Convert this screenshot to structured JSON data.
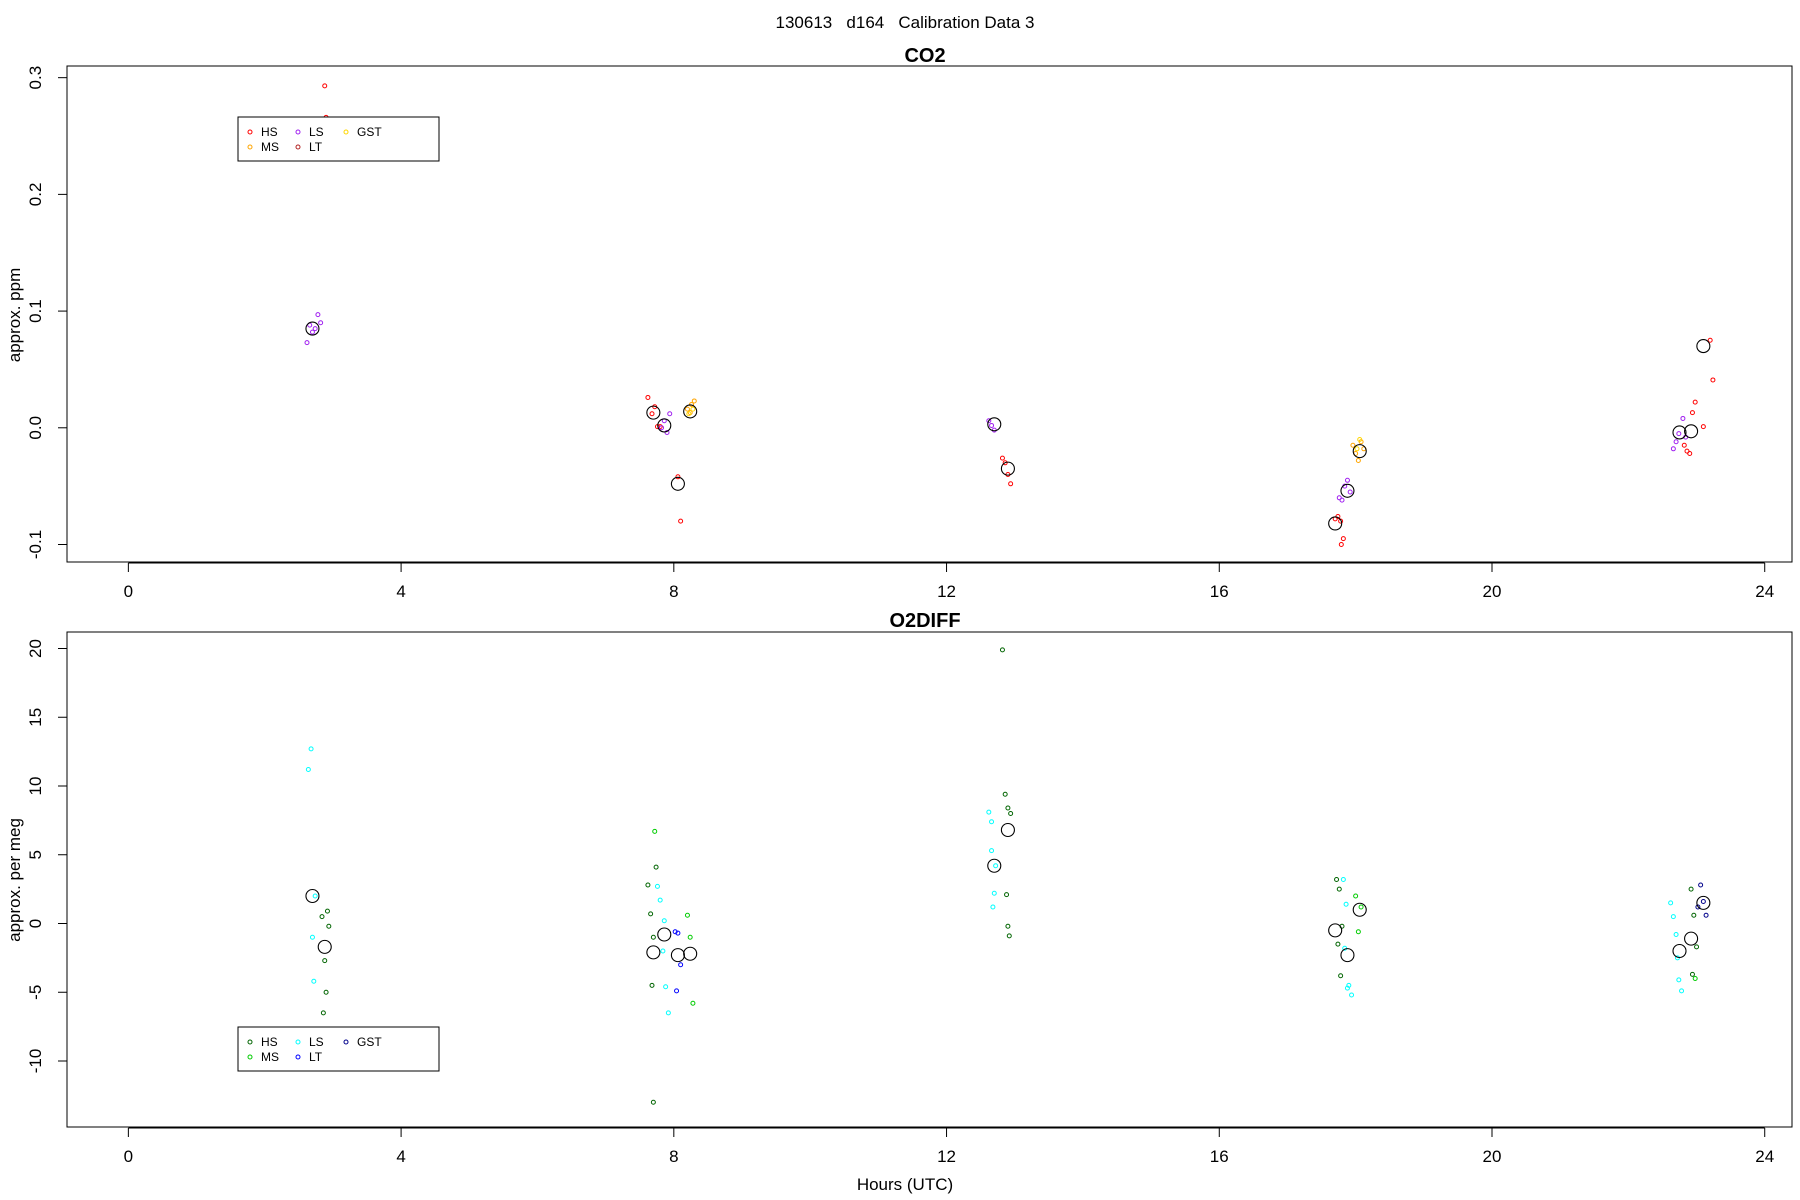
{
  "figure_title": "130613   d164   Calibration Data 3",
  "x_axis_label": "Hours (UTC)",
  "chart_data": [
    {
      "type": "scatter",
      "title": "CO2",
      "ylabel": "approx. ppm",
      "xlim": [
        -0.9,
        24.4
      ],
      "ylim": [
        -0.115,
        0.31
      ],
      "xticks": [
        0,
        4,
        8,
        12,
        16,
        20,
        24
      ],
      "yticks": [
        -0.1,
        0.0,
        0.1,
        0.2,
        0.3
      ],
      "ytick_labels": [
        "-0.1",
        "0.0",
        "0.1",
        "0.2",
        "0.3"
      ],
      "legend": {
        "position": "top-left",
        "entries": [
          {
            "label": "HS",
            "color": "#ff0000"
          },
          {
            "label": "MS",
            "color": "#ffa500"
          },
          {
            "label": "LS",
            "color": "#a020f0"
          },
          {
            "label": "LT",
            "color": "#b22222"
          },
          {
            "label": "GST",
            "color": "#ffd700"
          }
        ]
      },
      "series": [
        {
          "name": "HS",
          "color": "#ff0000",
          "x": [
            2.88,
            2.9,
            7.62,
            7.68,
            7.72,
            7.76,
            7.8,
            8.1,
            8.06,
            12.82,
            12.86,
            12.9,
            12.94,
            17.7,
            17.74,
            17.78,
            17.82,
            17.79,
            22.82,
            22.86,
            22.9,
            22.94,
            22.98,
            23.1,
            23.2,
            23.24
          ],
          "y": [
            0.293,
            0.266,
            0.026,
            0.012,
            0.018,
            0.001,
            0.001,
            -0.08,
            -0.042,
            -0.026,
            -0.03,
            -0.04,
            -0.048,
            -0.078,
            -0.076,
            -0.08,
            -0.095,
            -0.1,
            -0.015,
            -0.02,
            -0.022,
            0.013,
            0.022,
            0.001,
            0.075,
            0.041
          ]
        },
        {
          "name": "MS",
          "color": "#ffa500",
          "x": [
            8.2,
            8.24,
            8.26,
            8.3,
            17.96,
            18.0,
            18.04,
            18.08,
            18.12
          ],
          "y": [
            0.016,
            0.013,
            0.02,
            0.023,
            -0.015,
            -0.022,
            -0.028,
            -0.012,
            -0.018
          ]
        },
        {
          "name": "LS",
          "color": "#a020f0",
          "x": [
            2.62,
            2.66,
            2.7,
            2.74,
            2.78,
            2.82,
            7.82,
            7.86,
            7.9,
            7.94,
            12.62,
            12.66,
            12.7,
            17.76,
            17.8,
            17.84,
            17.88,
            17.92,
            22.66,
            22.7,
            22.74,
            22.8,
            22.84
          ],
          "y": [
            0.073,
            0.088,
            0.082,
            0.085,
            0.097,
            0.09,
            0.0,
            0.006,
            -0.004,
            0.012,
            0.006,
            0.002,
            -0.002,
            -0.06,
            -0.062,
            -0.05,
            -0.045,
            -0.055,
            -0.018,
            -0.012,
            -0.005,
            0.008,
            -0.008
          ]
        },
        {
          "name": "LT",
          "color": "#b22222",
          "x": [],
          "y": []
        },
        {
          "name": "GST",
          "color": "#ffd700",
          "x": [
            8.22,
            8.28,
            18.02,
            18.06
          ],
          "y": [
            0.012,
            0.016,
            -0.018,
            -0.01
          ]
        },
        {
          "name": "",
          "role": "mean",
          "color": "#000000",
          "x": [
            2.7,
            7.7,
            7.86,
            8.06,
            8.24,
            12.7,
            12.9,
            17.7,
            17.88,
            18.06,
            22.75,
            22.92,
            23.1
          ],
          "y": [
            0.085,
            0.013,
            0.002,
            -0.048,
            0.014,
            0.003,
            -0.035,
            -0.082,
            -0.054,
            -0.02,
            -0.004,
            -0.003,
            0.07
          ]
        }
      ]
    },
    {
      "type": "scatter",
      "title": "O2DIFF",
      "ylabel": "approx. per meg",
      "xlim": [
        -0.9,
        24.4
      ],
      "ylim": [
        -14.8,
        21.2
      ],
      "xticks": [
        0,
        4,
        8,
        12,
        16,
        20,
        24
      ],
      "yticks": [
        -10,
        -5,
        0,
        5,
        10,
        15,
        20
      ],
      "ytick_labels": [
        "-10",
        "-5",
        "0",
        "5",
        "10",
        "15",
        "20"
      ],
      "legend": {
        "position": "bottom-left",
        "entries": [
          {
            "label": "HS",
            "color": "#006400"
          },
          {
            "label": "MS",
            "color": "#00cc00"
          },
          {
            "label": "LS",
            "color": "#00ffff"
          },
          {
            "label": "LT",
            "color": "#0000ff"
          },
          {
            "label": "GST",
            "color": "#00008b"
          }
        ]
      },
      "series": [
        {
          "name": "HS",
          "color": "#006400",
          "x": [
            2.84,
            2.88,
            2.9,
            2.86,
            2.92,
            2.94,
            7.62,
            7.66,
            7.7,
            7.74,
            7.68,
            7.7,
            12.82,
            12.86,
            12.9,
            12.94,
            12.88,
            12.9,
            12.92,
            17.72,
            17.76,
            17.8,
            17.74,
            17.78,
            22.92,
            22.96,
            23.0,
            22.94
          ],
          "y": [
            0.5,
            -2.7,
            -5.0,
            -6.5,
            0.9,
            -0.2,
            2.8,
            0.7,
            -1.0,
            4.1,
            -4.5,
            -13.0,
            19.9,
            9.4,
            8.4,
            8.0,
            2.1,
            -0.2,
            -0.9,
            3.2,
            2.5,
            -0.2,
            -1.5,
            -3.8,
            2.5,
            0.6,
            -1.7,
            -3.7
          ]
        },
        {
          "name": "MS",
          "color": "#00cc00",
          "x": [
            7.72,
            8.2,
            8.24,
            8.28,
            18.0,
            18.04,
            18.08,
            22.98
          ],
          "y": [
            6.7,
            0.6,
            -1.0,
            -5.8,
            2.0,
            -0.6,
            1.2,
            -4.0
          ]
        },
        {
          "name": "LS",
          "color": "#00ffff",
          "x": [
            2.64,
            2.68,
            2.7,
            2.74,
            2.72,
            2.76,
            7.76,
            7.8,
            7.84,
            7.88,
            7.92,
            7.86,
            12.62,
            12.66,
            12.7,
            12.68,
            12.72,
            12.66,
            17.82,
            17.86,
            17.9,
            17.94,
            17.88,
            17.84,
            22.62,
            22.66,
            22.7,
            22.74,
            22.78,
            22.72
          ],
          "y": [
            11.2,
            12.7,
            -1.0,
            2.0,
            -4.2,
            -7.8,
            2.7,
            1.7,
            -2.0,
            -4.6,
            -6.5,
            0.2,
            8.1,
            5.3,
            2.2,
            1.2,
            4.2,
            7.4,
            3.2,
            1.4,
            -4.5,
            -5.2,
            -4.7,
            -1.8,
            1.5,
            0.5,
            -0.8,
            -4.1,
            -4.9,
            -2.5
          ]
        },
        {
          "name": "LT",
          "color": "#0000ff",
          "x": [
            8.02,
            8.06,
            8.1,
            8.04
          ],
          "y": [
            -0.6,
            -0.7,
            -3.0,
            -4.9
          ]
        },
        {
          "name": "GST",
          "color": "#00008b",
          "x": [
            23.06,
            23.1,
            23.14,
            23.02
          ],
          "y": [
            2.8,
            1.6,
            0.6,
            1.2
          ]
        },
        {
          "name": "",
          "role": "mean",
          "color": "#000000",
          "x": [
            2.7,
            2.88,
            7.7,
            7.86,
            8.06,
            8.24,
            12.7,
            12.9,
            17.7,
            17.88,
            18.06,
            22.75,
            22.92,
            23.1
          ],
          "y": [
            2.0,
            -1.7,
            -2.1,
            -0.8,
            -2.3,
            -2.2,
            4.2,
            6.8,
            -0.5,
            -2.3,
            1.0,
            -2.0,
            -1.1,
            1.5
          ]
        }
      ]
    }
  ]
}
